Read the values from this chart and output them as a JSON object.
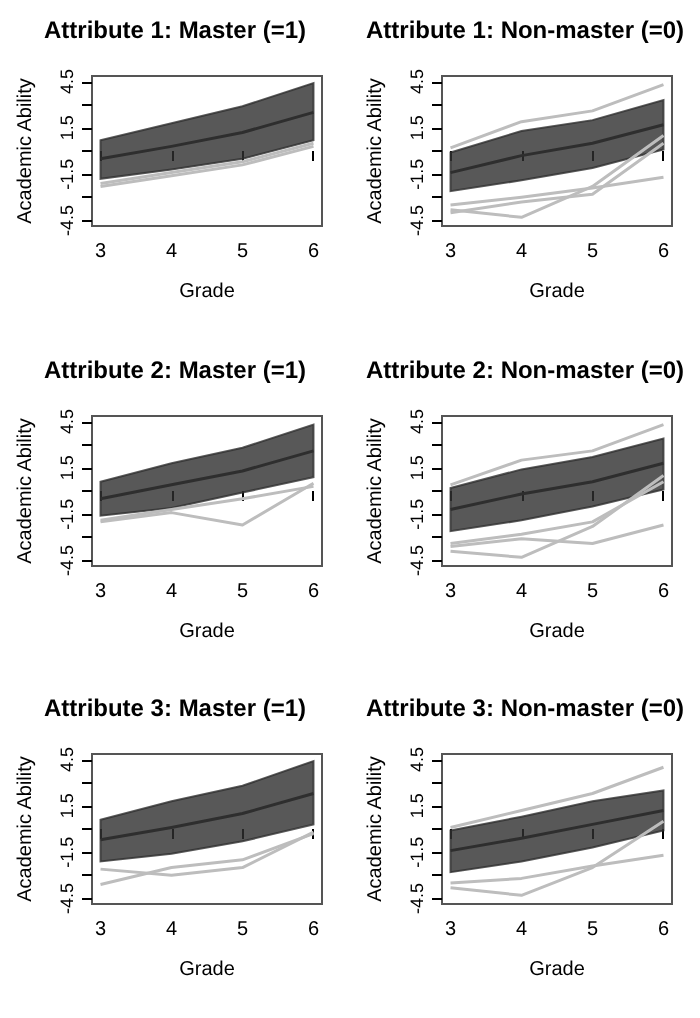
{
  "chart_data": [
    {
      "type": "line",
      "title": "Attribute 1: Master (=1)",
      "xlabel": "Grade",
      "ylabel": "Academic Ability",
      "x": [
        3,
        4,
        5,
        6
      ],
      "xlim": [
        2.88,
        6.12
      ],
      "xticks": [
        3,
        4,
        5,
        6
      ],
      "ylim": [
        -4.86,
        4.86
      ],
      "yticks": [
        -4.5,
        {
          "value": -3,
          "label": null
        },
        -1.5,
        {
          "value": 0,
          "label": null
        },
        1.5,
        {
          "value": 3,
          "label": null
        },
        4.5
      ],
      "marker": "none",
      "series": [
        {
          "color": "#2e2e2e",
          "values": [
            -0.5,
            0.3,
            1.2,
            2.5
          ],
          "lower": [
            -1.8,
            -1.2,
            -0.5,
            0.7
          ],
          "upper": [
            0.7,
            1.8,
            2.9,
            4.4
          ]
        },
        {
          "color": "#bdbdbd",
          "values": [
            -2.3,
            -1.6,
            -0.9,
            0.3
          ]
        },
        {
          "color": "#bdbdbd",
          "values": [
            -2.1,
            -1.4,
            -0.7,
            0.5
          ]
        }
      ]
    },
    {
      "type": "line",
      "title": "Attribute 1: Non-master (=0)",
      "xlabel": "Grade",
      "ylabel": "Academic Ability",
      "x": [
        3,
        4,
        5,
        6
      ],
      "xlim": [
        2.88,
        6.12
      ],
      "xticks": [
        3,
        4,
        5,
        6
      ],
      "ylim": [
        -4.86,
        4.86
      ],
      "yticks": [
        -4.5,
        {
          "value": -3,
          "label": null
        },
        -1.5,
        {
          "value": 0,
          "label": null
        },
        1.5,
        {
          "value": 3,
          "label": null
        },
        4.5
      ],
      "marker": "none",
      "series": [
        {
          "color": "#2e2e2e",
          "values": [
            -1.4,
            -0.3,
            0.5,
            1.7
          ],
          "lower": [
            -2.6,
            -1.9,
            -1.1,
            0.1
          ],
          "upper": [
            -0.1,
            1.3,
            2.0,
            3.3
          ]
        },
        {
          "color": "#bdbdbd",
          "values": [
            0.2,
            1.9,
            2.6,
            4.3
          ]
        },
        {
          "color": "#bdbdbd",
          "values": [
            -3.8,
            -4.3,
            -2.3,
            1.0
          ]
        },
        {
          "color": "#bdbdbd",
          "values": [
            -3.5,
            -3.0,
            -2.4,
            -1.7
          ]
        },
        {
          "color": "#bdbdbd",
          "values": [
            -4.0,
            -3.3,
            -2.8,
            0.5
          ]
        }
      ]
    },
    {
      "type": "line",
      "title": "Attribute 2: Master (=1)",
      "xlabel": "Grade",
      "ylabel": "Academic Ability",
      "x": [
        3,
        4,
        5,
        6
      ],
      "xlim": [
        2.88,
        6.12
      ],
      "xticks": [
        3,
        4,
        5,
        6
      ],
      "ylim": [
        -4.86,
        4.86
      ],
      "yticks": [
        -4.5,
        {
          "value": -3,
          "label": null
        },
        -1.5,
        {
          "value": 0,
          "label": null
        },
        1.5,
        {
          "value": 3,
          "label": null
        },
        4.5
      ],
      "marker": "none",
      "series": [
        {
          "color": "#2e2e2e",
          "values": [
            -0.5,
            0.4,
            1.3,
            2.6
          ],
          "lower": [
            -1.6,
            -1.1,
            -0.1,
            0.9
          ],
          "upper": [
            0.6,
            1.8,
            2.8,
            4.3
          ]
        },
        {
          "color": "#bdbdbd",
          "values": [
            -2.0,
            -1.4,
            -2.2,
            0.5
          ]
        },
        {
          "color": "#bdbdbd",
          "values": [
            -1.9,
            -1.2,
            -0.5,
            0.3
          ]
        }
      ]
    },
    {
      "type": "line",
      "title": "Attribute 2: Non-master (=0)",
      "xlabel": "Grade",
      "ylabel": "Academic Ability",
      "x": [
        3,
        4,
        5,
        6
      ],
      "xlim": [
        2.88,
        6.12
      ],
      "xticks": [
        3,
        4,
        5,
        6
      ],
      "ylim": [
        -4.86,
        4.86
      ],
      "yticks": [
        -4.5,
        {
          "value": -3,
          "label": null
        },
        -1.5,
        {
          "value": 0,
          "label": null
        },
        1.5,
        {
          "value": 3,
          "label": null
        },
        4.5
      ],
      "marker": "none",
      "series": [
        {
          "color": "#2e2e2e",
          "values": [
            -1.2,
            -0.2,
            0.6,
            1.8
          ],
          "lower": [
            -2.6,
            -1.9,
            -1.0,
            0.1
          ],
          "upper": [
            0.2,
            1.4,
            2.2,
            3.4
          ]
        },
        {
          "color": "#bdbdbd",
          "values": [
            0.4,
            2.0,
            2.6,
            4.3
          ]
        },
        {
          "color": "#bdbdbd",
          "values": [
            -3.9,
            -4.3,
            -2.3,
            1.0
          ]
        },
        {
          "color": "#bdbdbd",
          "values": [
            -3.6,
            -3.1,
            -3.4,
            -2.2
          ]
        },
        {
          "color": "#bdbdbd",
          "values": [
            -3.4,
            -2.8,
            -2.0,
            0.6
          ]
        }
      ]
    },
    {
      "type": "line",
      "title": "Attribute 3: Master (=1)",
      "xlabel": "Grade",
      "ylabel": "Academic Ability",
      "x": [
        3,
        4,
        5,
        6
      ],
      "xlim": [
        2.88,
        6.12
      ],
      "xticks": [
        3,
        4,
        5,
        6
      ],
      "ylim": [
        -4.86,
        4.86
      ],
      "yticks": [
        -4.5,
        {
          "value": -3,
          "label": null
        },
        -1.5,
        {
          "value": 0,
          "label": null
        },
        1.5,
        {
          "value": 3,
          "label": null
        },
        4.5
      ],
      "marker": "none",
      "series": [
        {
          "color": "#2e2e2e",
          "values": [
            -0.7,
            0.1,
            1.0,
            2.3
          ],
          "lower": [
            -2.1,
            -1.6,
            -0.8,
            0.3
          ],
          "upper": [
            0.6,
            1.8,
            2.8,
            4.4
          ]
        },
        {
          "color": "#bdbdbd",
          "values": [
            -3.6,
            -2.5,
            -2.0,
            -0.3
          ]
        },
        {
          "color": "#bdbdbd",
          "values": [
            -2.6,
            -3.0,
            -2.5,
            -0.2
          ]
        }
      ]
    },
    {
      "type": "line",
      "title": "Attribute 3: Non-master (=0)",
      "xlabel": "Grade",
      "ylabel": "Academic Ability",
      "x": [
        3,
        4,
        5,
        6
      ],
      "xlim": [
        2.88,
        6.12
      ],
      "xticks": [
        3,
        4,
        5,
        6
      ],
      "ylim": [
        -4.86,
        4.86
      ],
      "yticks": [
        -4.5,
        {
          "value": -3,
          "label": null
        },
        -1.5,
        {
          "value": 0,
          "label": null
        },
        1.5,
        {
          "value": 3,
          "label": null
        },
        4.5
      ],
      "marker": "none",
      "series": [
        {
          "color": "#2e2e2e",
          "values": [
            -1.4,
            -0.6,
            0.3,
            1.2
          ],
          "lower": [
            -2.8,
            -2.1,
            -1.2,
            -0.1
          ],
          "upper": [
            -0.1,
            0.8,
            1.8,
            2.5
          ]
        },
        {
          "color": "#bdbdbd",
          "values": [
            0.1,
            1.2,
            2.3,
            4.0
          ]
        },
        {
          "color": "#bdbdbd",
          "values": [
            -3.8,
            -4.3,
            -2.5,
            0.5
          ]
        },
        {
          "color": "#bdbdbd",
          "values": [
            -3.5,
            -3.2,
            -2.4,
            -1.7
          ]
        }
      ]
    }
  ]
}
